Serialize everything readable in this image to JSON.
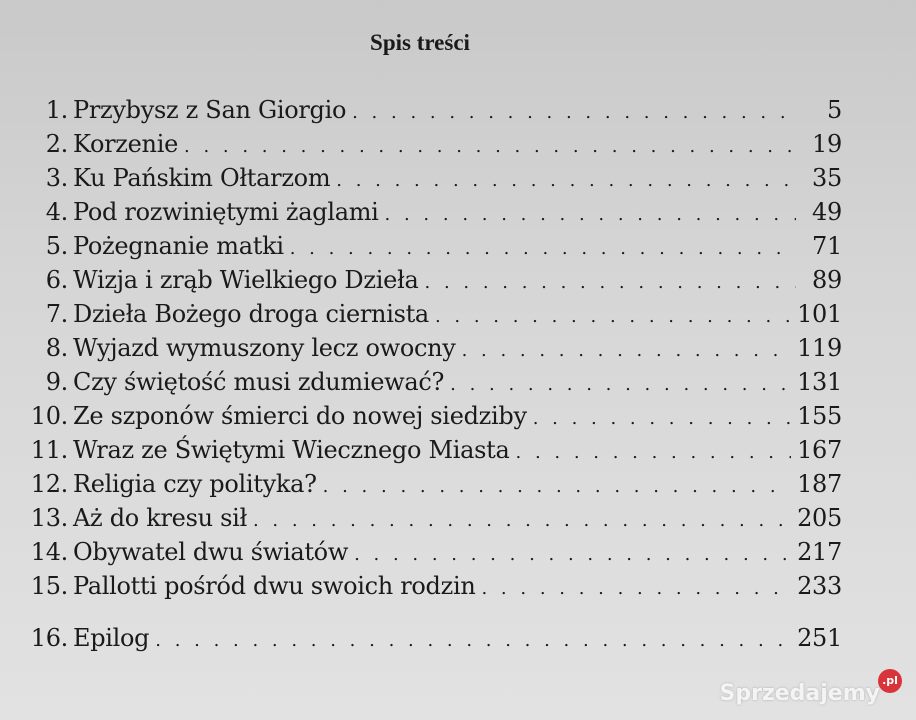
{
  "title": "Spis treści",
  "entries": [
    {
      "num": "1.",
      "label": "Przybysz z San Giorgio",
      "page": "5"
    },
    {
      "num": "2.",
      "label": "Korzenie",
      "page": "19"
    },
    {
      "num": "3.",
      "label": "Ku Pańskim Ołtarzom",
      "page": "35"
    },
    {
      "num": "4.",
      "label": "Pod rozwiniętymi żaglami",
      "page": "49"
    },
    {
      "num": "5.",
      "label": "Pożegnanie matki",
      "page": "71"
    },
    {
      "num": "6.",
      "label": "Wizja i zrąb Wielkiego Dzieła",
      "page": "89"
    },
    {
      "num": "7.",
      "label": "Dzieła Bożego droga ciernista",
      "page": "101"
    },
    {
      "num": "8.",
      "label": "Wyjazd wymuszony lecz owocny",
      "page": "119"
    },
    {
      "num": "9.",
      "label": "Czy świętość musi zdumiewać?",
      "page": "131"
    },
    {
      "num": "10.",
      "label": "Ze szponów śmierci do nowej siedziby",
      "page": "155"
    },
    {
      "num": "11.",
      "label": "Wraz ze Świętymi Wiecznego Miasta",
      "page": "167"
    },
    {
      "num": "12.",
      "label": "Religia czy polityka?",
      "page": "187"
    },
    {
      "num": "13.",
      "label": "Aż do kresu sił",
      "page": "205"
    },
    {
      "num": "14.",
      "label": "Obywatel dwu światów",
      "page": "217"
    },
    {
      "num": "15.",
      "label": "Pallotti pośród dwu swoich rodzin",
      "page": "233"
    },
    {
      "num": "16.",
      "label": "Epilog",
      "page": "251"
    }
  ],
  "watermark": {
    "text": "Sprzedajemy",
    "badge": ".pl",
    "badge_color": "#d8353b"
  }
}
